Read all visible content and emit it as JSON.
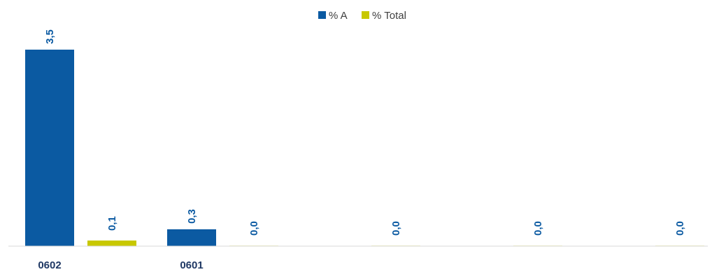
{
  "chart_data": {
    "type": "bar",
    "categories": [
      "0602",
      "0601",
      "",
      "",
      ""
    ],
    "series": [
      {
        "name": "% A",
        "color": "#0b5aa2",
        "values": [
          3.5,
          0.3,
          0,
          0,
          0
        ]
      },
      {
        "name": "% Total",
        "color": "#c8c800",
        "values": [
          0.1,
          0.0,
          0,
          0,
          0
        ]
      }
    ],
    "data_labels": {
      "% A": [
        "3,5",
        "0,3",
        "",
        "",
        ""
      ],
      "% Total": [
        "0,1",
        "0,0",
        "0,0",
        "0,0",
        "0,0"
      ]
    },
    "label_color": "#0b5aa2",
    "title": "",
    "xlabel": "",
    "ylabel": "",
    "ylim": [
      0,
      3.5
    ],
    "grid": false,
    "legend_position": "top"
  }
}
